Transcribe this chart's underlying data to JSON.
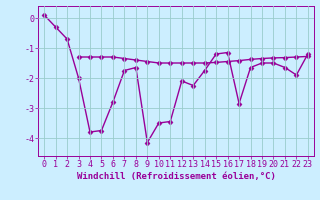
{
  "x": [
    0,
    1,
    2,
    3,
    4,
    5,
    6,
    7,
    8,
    9,
    10,
    11,
    12,
    13,
    14,
    15,
    16,
    17,
    18,
    19,
    20,
    21,
    22,
    23
  ],
  "y_volatile": [
    0.1,
    -0.3,
    -0.7,
    -2.0,
    -3.8,
    -3.75,
    -2.8,
    -1.75,
    -1.65,
    -4.15,
    -3.5,
    -3.45,
    -2.1,
    -2.25,
    -1.75,
    -1.2,
    -1.15,
    -2.85,
    -1.65,
    -1.5,
    -1.5,
    -1.65,
    -1.9,
    -1.2
  ],
  "y_smooth": [
    null,
    null,
    null,
    -1.3,
    -1.3,
    -1.3,
    -1.3,
    -1.35,
    -1.4,
    -1.45,
    -1.5,
    -1.5,
    -1.5,
    -1.5,
    -1.5,
    -1.48,
    -1.45,
    -1.42,
    -1.38,
    -1.35,
    -1.33,
    -1.32,
    -1.3,
    -1.28
  ],
  "ylim": [
    -4.6,
    0.4
  ],
  "xlim": [
    -0.5,
    23.5
  ],
  "yticks": [
    0,
    -1,
    -2,
    -3,
    -4
  ],
  "xticks": [
    0,
    1,
    2,
    3,
    4,
    5,
    6,
    7,
    8,
    9,
    10,
    11,
    12,
    13,
    14,
    15,
    16,
    17,
    18,
    19,
    20,
    21,
    22,
    23
  ],
  "line_color": "#990099",
  "bg_color": "#cceeff",
  "grid_color": "#99cccc",
  "xlabel": "Windchill (Refroidissement éolien,°C)",
  "marker": "D",
  "marker_size": 2.5,
  "linewidth": 1.0,
  "xlabel_fontsize": 6.5,
  "tick_fontsize": 6.0
}
